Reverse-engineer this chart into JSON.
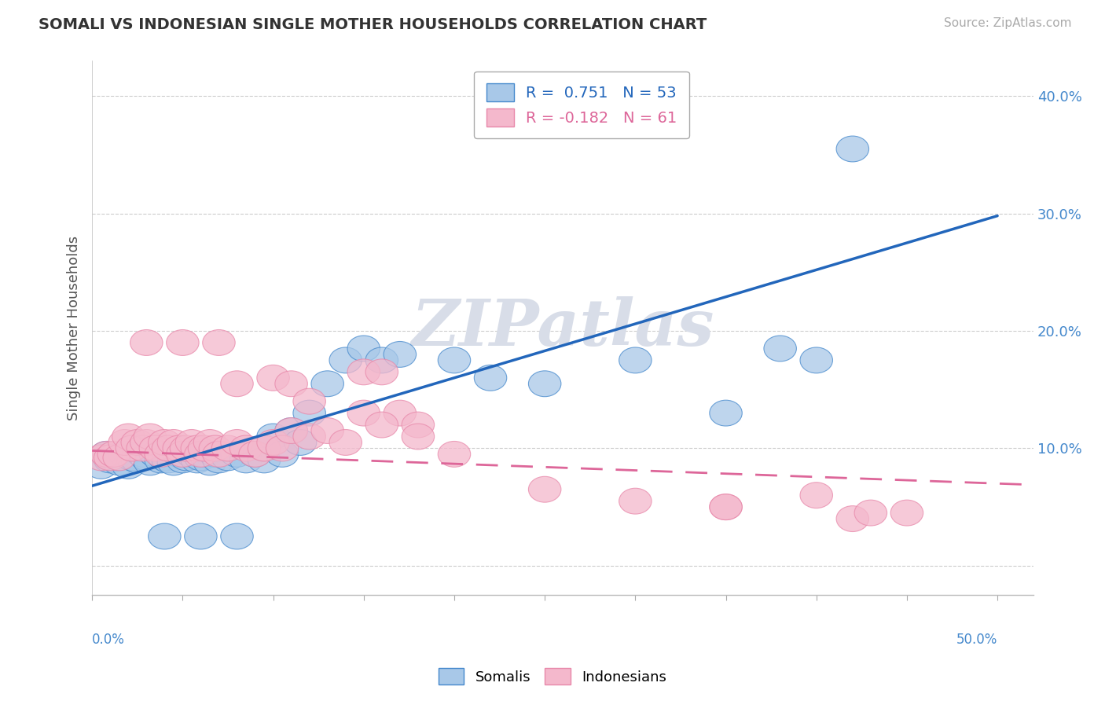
{
  "title": "SOMALI VS INDONESIAN SINGLE MOTHER HOUSEHOLDS CORRELATION CHART",
  "source": "Source: ZipAtlas.com",
  "ylabel": "Single Mother Households",
  "ytick_positions": [
    0.0,
    0.1,
    0.2,
    0.3,
    0.4
  ],
  "ytick_labels": [
    "",
    "10.0%",
    "20.0%",
    "30.0%",
    "40.0%"
  ],
  "xticks": [
    0.0,
    0.05,
    0.1,
    0.15,
    0.2,
    0.25,
    0.3,
    0.35,
    0.4,
    0.45,
    0.5
  ],
  "xlim": [
    0.0,
    0.52
  ],
  "ylim": [
    -0.025,
    0.43
  ],
  "somali_color": "#a8c8e8",
  "indonesian_color": "#f4b8cc",
  "somali_edge_color": "#4488cc",
  "indonesian_edge_color": "#e888aa",
  "somali_line_color": "#2266bb",
  "indonesian_line_color": "#dd6699",
  "tick_label_color": "#4488cc",
  "watermark_color": "#d8dde8",
  "legend_label1": "Somalis",
  "legend_label2": "Indonesians",
  "somali_r": 0.751,
  "somali_n": 53,
  "indonesian_r": -0.182,
  "indonesian_n": 61,
  "somali_line_x0": 0.0,
  "somali_line_y0": 0.068,
  "somali_line_x1": 0.5,
  "somali_line_y1": 0.298,
  "indonesian_line_x0": 0.0,
  "indonesian_line_y0": 0.098,
  "indonesian_line_x1": 0.5,
  "indonesian_line_y1": 0.07,
  "somali_pts_x": [
    0.005,
    0.008,
    0.01,
    0.012,
    0.015,
    0.018,
    0.02,
    0.022,
    0.025,
    0.028,
    0.03,
    0.032,
    0.035,
    0.038,
    0.04,
    0.042,
    0.045,
    0.048,
    0.05,
    0.052,
    0.055,
    0.058,
    0.06,
    0.062,
    0.065,
    0.068,
    0.07,
    0.075,
    0.08,
    0.085,
    0.09,
    0.095,
    0.1,
    0.105,
    0.11,
    0.115,
    0.12,
    0.13,
    0.14,
    0.15,
    0.16,
    0.17,
    0.2,
    0.22,
    0.25,
    0.3,
    0.35,
    0.38,
    0.4,
    0.42,
    0.04,
    0.06,
    0.08
  ],
  "somali_pts_y": [
    0.085,
    0.095,
    0.09,
    0.092,
    0.088,
    0.095,
    0.085,
    0.092,
    0.09,
    0.095,
    0.092,
    0.088,
    0.095,
    0.09,
    0.092,
    0.09,
    0.088,
    0.095,
    0.09,
    0.092,
    0.095,
    0.09,
    0.092,
    0.095,
    0.088,
    0.095,
    0.09,
    0.092,
    0.095,
    0.09,
    0.095,
    0.09,
    0.11,
    0.095,
    0.115,
    0.105,
    0.13,
    0.155,
    0.175,
    0.185,
    0.175,
    0.18,
    0.175,
    0.16,
    0.155,
    0.175,
    0.13,
    0.185,
    0.175,
    0.355,
    0.025,
    0.025,
    0.025
  ],
  "indonesian_pts_x": [
    0.005,
    0.008,
    0.01,
    0.012,
    0.015,
    0.018,
    0.02,
    0.022,
    0.025,
    0.028,
    0.03,
    0.032,
    0.035,
    0.038,
    0.04,
    0.042,
    0.045,
    0.048,
    0.05,
    0.052,
    0.055,
    0.058,
    0.06,
    0.062,
    0.065,
    0.068,
    0.07,
    0.075,
    0.08,
    0.085,
    0.09,
    0.095,
    0.1,
    0.105,
    0.11,
    0.12,
    0.13,
    0.14,
    0.15,
    0.16,
    0.17,
    0.18,
    0.2,
    0.3,
    0.35,
    0.4,
    0.42,
    0.45,
    0.03,
    0.05,
    0.07,
    0.08,
    0.1,
    0.11,
    0.12,
    0.15,
    0.16,
    0.18,
    0.25,
    0.35,
    0.43
  ],
  "indonesian_pts_y": [
    0.092,
    0.095,
    0.092,
    0.095,
    0.092,
    0.105,
    0.11,
    0.1,
    0.105,
    0.1,
    0.105,
    0.11,
    0.1,
    0.095,
    0.105,
    0.1,
    0.105,
    0.1,
    0.095,
    0.1,
    0.105,
    0.1,
    0.095,
    0.1,
    0.105,
    0.1,
    0.095,
    0.1,
    0.105,
    0.1,
    0.095,
    0.1,
    0.105,
    0.1,
    0.115,
    0.11,
    0.115,
    0.105,
    0.165,
    0.165,
    0.13,
    0.12,
    0.095,
    0.055,
    0.05,
    0.06,
    0.04,
    0.045,
    0.19,
    0.19,
    0.19,
    0.155,
    0.16,
    0.155,
    0.14,
    0.13,
    0.12,
    0.11,
    0.065,
    0.05,
    0.045
  ]
}
